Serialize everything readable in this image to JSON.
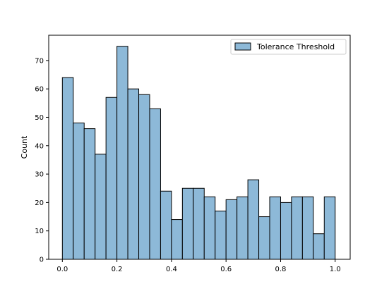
{
  "chart_data": {
    "type": "bar",
    "title": "",
    "xlabel": "",
    "ylabel": "Count",
    "xlim": [
      -0.05,
      1.055
    ],
    "ylim": [
      0,
      78.9
    ],
    "xticks": [
      0.0,
      0.2,
      0.4,
      0.6,
      0.8,
      1.0
    ],
    "xtick_labels": [
      "0.0",
      "0.2",
      "0.4",
      "0.6",
      "0.8",
      "1.0"
    ],
    "yticks": [
      0,
      10,
      20,
      30,
      40,
      50,
      60,
      70
    ],
    "ytick_labels": [
      "0",
      "10",
      "20",
      "30",
      "40",
      "50",
      "60",
      "70"
    ],
    "bin_start": 0.0,
    "bin_width": 0.04,
    "values": [
      64,
      48,
      46,
      37,
      57,
      75,
      60,
      58,
      53,
      24,
      14,
      25,
      25,
      22,
      17,
      21,
      22,
      28,
      15,
      22,
      20,
      22,
      22,
      9,
      22
    ],
    "series": [
      {
        "name": "Tolerance Threshold",
        "color": "#8db9d8",
        "edge_color": "#000000"
      }
    ],
    "legend": {
      "position": "top-right",
      "entries": [
        "Tolerance Threshold"
      ]
    },
    "grid": false
  }
}
